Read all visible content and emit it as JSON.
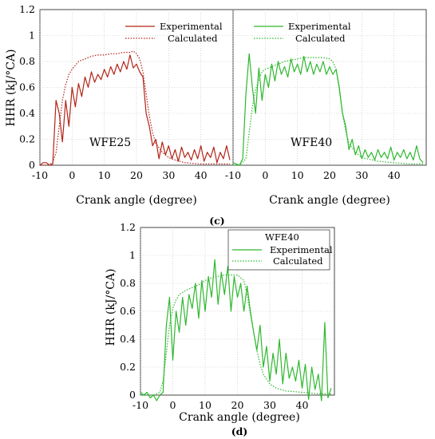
{
  "chart_data": [
    {
      "type": "line",
      "ylabel": "HHR (kJ/°CA)",
      "xlabel": "Crank angle (degree)",
      "xlim": [
        -10,
        50
      ],
      "ylim": [
        0,
        1.2
      ],
      "x_ticks": [
        "-10",
        "0",
        "10",
        "20",
        "30",
        "40"
      ],
      "y_ticks": [
        "0",
        "0.2",
        "0.4",
        "0.6",
        "0.8",
        "1",
        "1.2"
      ],
      "annotation": "WFE25",
      "legend_position": "top-right",
      "series": [
        {
          "name": "Experimental",
          "style": "solid",
          "color": "#b22418",
          "x": [
            -10,
            -9,
            -8,
            -7,
            -6,
            -5,
            -4,
            -3,
            -2,
            -1,
            0,
            1,
            2,
            3,
            4,
            5,
            6,
            7,
            8,
            9,
            10,
            11,
            12,
            13,
            14,
            15,
            16,
            17,
            18,
            19,
            20,
            21,
            22,
            23,
            24,
            25,
            26,
            27,
            28,
            29,
            30,
            31,
            32,
            33,
            34,
            35,
            36,
            37,
            38,
            39,
            40,
            41,
            42,
            43,
            44,
            45,
            46,
            47,
            48,
            49
          ],
          "y": [
            0,
            0.02,
            0.02,
            0,
            0.01,
            0.5,
            0.4,
            0.18,
            0.5,
            0.3,
            0.6,
            0.45,
            0.63,
            0.53,
            0.68,
            0.6,
            0.72,
            0.64,
            0.7,
            0.66,
            0.74,
            0.68,
            0.76,
            0.7,
            0.78,
            0.72,
            0.8,
            0.74,
            0.85,
            0.75,
            0.78,
            0.72,
            0.68,
            0.4,
            0.3,
            0.15,
            0.2,
            0.05,
            0.18,
            0.08,
            0.15,
            0.05,
            0.12,
            0.03,
            0.14,
            0.06,
            0.1,
            0.04,
            0.12,
            0.05,
            0.15,
            0.03,
            0.1,
            0.06,
            0.14,
            0.02,
            0.1,
            0.05,
            0.15,
            0.04
          ]
        },
        {
          "name": "Calculated",
          "style": "dotted",
          "color": "#b22418",
          "x": [
            -10,
            -8,
            -6,
            -5,
            -4,
            -3,
            -2,
            -1,
            0,
            1,
            2,
            4,
            6,
            8,
            10,
            12,
            14,
            16,
            18,
            19,
            20,
            21,
            22,
            23,
            24,
            25,
            26,
            28,
            30,
            32,
            35,
            40,
            45,
            49
          ],
          "y": [
            0,
            0,
            0.02,
            0.1,
            0.3,
            0.5,
            0.62,
            0.7,
            0.74,
            0.77,
            0.8,
            0.82,
            0.84,
            0.85,
            0.85,
            0.86,
            0.86,
            0.87,
            0.87,
            0.88,
            0.86,
            0.82,
            0.72,
            0.55,
            0.38,
            0.25,
            0.17,
            0.1,
            0.06,
            0.04,
            0.02,
            0.01,
            0.01,
            0.01
          ]
        }
      ]
    },
    {
      "type": "line",
      "xlabel": "Crank angle (degree)",
      "xlim": [
        -10,
        50
      ],
      "ylim": [
        0,
        1.2
      ],
      "x_ticks": [
        "-10",
        "0",
        "10",
        "20",
        "30",
        "40"
      ],
      "annotation": "WFE40",
      "legend_position": "top-right",
      "series": [
        {
          "name": "Experimental",
          "style": "solid",
          "color": "#2eb82e",
          "x": [
            -10,
            -9,
            -8,
            -7,
            -6,
            -5,
            -4,
            -3,
            -2,
            -1,
            0,
            1,
            2,
            3,
            4,
            5,
            6,
            7,
            8,
            9,
            10,
            11,
            12,
            13,
            14,
            15,
            16,
            17,
            18,
            19,
            20,
            21,
            22,
            23,
            24,
            25,
            26,
            27,
            28,
            29,
            30,
            31,
            32,
            33,
            34,
            35,
            36,
            37,
            38,
            39,
            40,
            41,
            42,
            43,
            44,
            45,
            46,
            47,
            48,
            49
          ],
          "y": [
            0.02,
            0.01,
            0,
            0.05,
            0.55,
            0.86,
            0.6,
            0.4,
            0.75,
            0.5,
            0.7,
            0.6,
            0.78,
            0.65,
            0.8,
            0.7,
            0.76,
            0.68,
            0.82,
            0.72,
            0.78,
            0.7,
            0.84,
            0.72,
            0.8,
            0.7,
            0.78,
            0.72,
            0.8,
            0.7,
            0.76,
            0.7,
            0.74,
            0.6,
            0.4,
            0.3,
            0.12,
            0.2,
            0.08,
            0.15,
            0.05,
            0.12,
            0.06,
            0.1,
            0.04,
            0.12,
            0.06,
            0.1,
            0.05,
            0.14,
            0.04,
            0.1,
            0.06,
            0.12,
            0.05,
            0.1,
            0.04,
            0.15,
            0.05,
            0.02
          ]
        },
        {
          "name": "Calculated",
          "style": "dotted",
          "color": "#2eb82e",
          "x": [
            -10,
            -8,
            -6,
            -5,
            -4,
            -3,
            -2,
            -1,
            0,
            2,
            4,
            6,
            8,
            10,
            12,
            14,
            16,
            18,
            20,
            21,
            22,
            23,
            24,
            25,
            26,
            28,
            30,
            35,
            40,
            45,
            49
          ],
          "y": [
            0,
            0,
            0.05,
            0.25,
            0.45,
            0.58,
            0.66,
            0.72,
            0.74,
            0.76,
            0.78,
            0.8,
            0.81,
            0.82,
            0.83,
            0.83,
            0.83,
            0.83,
            0.82,
            0.8,
            0.74,
            0.58,
            0.4,
            0.26,
            0.17,
            0.1,
            0.06,
            0.03,
            0.02,
            0.01,
            0.01
          ]
        }
      ]
    },
    {
      "type": "line",
      "ylabel": "HHR (kJ/°CA)",
      "xlabel": "Crank angle (degree)",
      "xlim": [
        -10,
        50
      ],
      "ylim": [
        0,
        1.2
      ],
      "x_ticks": [
        "-10",
        "0",
        "10",
        "20",
        "30",
        "40"
      ],
      "y_ticks": [
        "0",
        "0.2",
        "0.4",
        "0.6",
        "0.8",
        "1",
        "1.2"
      ],
      "legend_title": "WFE40",
      "legend_position": "top-right",
      "series": [
        {
          "name": "Experimental",
          "style": "solid",
          "color": "#2eb82e",
          "x": [
            -10,
            -9,
            -8,
            -7,
            -6,
            -5,
            -4,
            -3,
            -2,
            -1,
            0,
            1,
            2,
            3,
            4,
            5,
            6,
            7,
            8,
            9,
            10,
            11,
            12,
            13,
            14,
            15,
            16,
            17,
            18,
            19,
            20,
            21,
            22,
            23,
            24,
            25,
            26,
            27,
            28,
            29,
            30,
            31,
            32,
            33,
            34,
            35,
            36,
            37,
            38,
            39,
            40,
            41,
            42,
            43,
            44,
            45,
            46,
            47,
            48,
            49
          ],
          "y": [
            0.02,
            0,
            0.02,
            -0.02,
            0,
            -0.04,
            0,
            0.02,
            0.5,
            0.7,
            0.25,
            0.6,
            0.45,
            0.7,
            0.5,
            0.72,
            0.62,
            0.8,
            0.55,
            0.82,
            0.6,
            0.85,
            0.7,
            0.97,
            0.65,
            0.88,
            0.72,
            0.92,
            0.6,
            0.85,
            0.7,
            0.8,
            0.6,
            0.78,
            0.6,
            0.45,
            0.32,
            0.5,
            0.2,
            0.35,
            0.1,
            0.3,
            0.15,
            0.4,
            0.08,
            0.3,
            0.12,
            0.2,
            0.1,
            0.25,
            0.05,
            0.22,
            -0.03,
            0.2,
            0.04,
            0.15,
            -0.04,
            0.52,
            -0.02,
            0.05
          ]
        },
        {
          "name": "Calculated",
          "style": "dotted",
          "color": "#2eb82e",
          "x": [
            -10,
            -6,
            -4,
            -3,
            -2,
            -1,
            0,
            1,
            2,
            4,
            6,
            8,
            10,
            12,
            14,
            16,
            18,
            20,
            22,
            23,
            24,
            25,
            26,
            27,
            28,
            30,
            32,
            35,
            40,
            45,
            49
          ],
          "y": [
            0,
            0,
            0.02,
            0.1,
            0.3,
            0.5,
            0.62,
            0.68,
            0.72,
            0.75,
            0.77,
            0.79,
            0.82,
            0.84,
            0.85,
            0.86,
            0.86,
            0.86,
            0.82,
            0.72,
            0.58,
            0.45,
            0.32,
            0.22,
            0.15,
            0.08,
            0.05,
            0.03,
            0.02,
            0.01,
            0.01
          ]
        }
      ]
    }
  ],
  "captions": [
    "(c)",
    "(d)"
  ]
}
